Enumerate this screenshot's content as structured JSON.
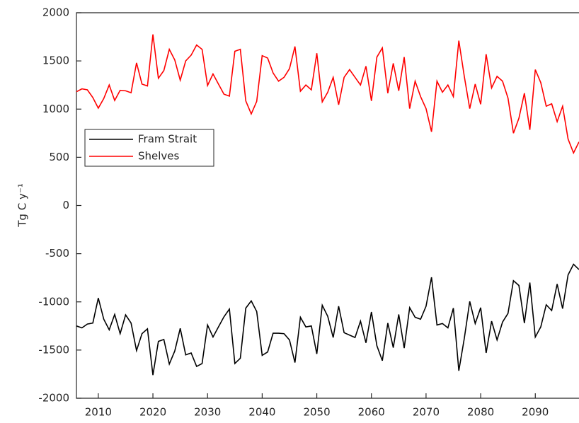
{
  "chart_data": {
    "type": "line",
    "y_label": "Tg C y⁻¹",
    "x": [
      2006,
      2007,
      2008,
      2009,
      2010,
      2011,
      2012,
      2013,
      2014,
      2015,
      2016,
      2017,
      2018,
      2019,
      2020,
      2021,
      2022,
      2023,
      2024,
      2025,
      2026,
      2027,
      2028,
      2029,
      2030,
      2031,
      2032,
      2033,
      2034,
      2035,
      2036,
      2037,
      2038,
      2039,
      2040,
      2041,
      2042,
      2043,
      2044,
      2045,
      2046,
      2047,
      2048,
      2049,
      2050,
      2051,
      2052,
      2053,
      2054,
      2055,
      2056,
      2057,
      2058,
      2059,
      2060,
      2061,
      2062,
      2063,
      2064,
      2065,
      2066,
      2067,
      2068,
      2069,
      2070,
      2071,
      2072,
      2073,
      2074,
      2075,
      2076,
      2077,
      2078,
      2079,
      2080,
      2081,
      2082,
      2083,
      2084,
      2085,
      2086,
      2087,
      2088,
      2089,
      2090,
      2091,
      2092,
      2093,
      2094,
      2095,
      2096,
      2097,
      2098
    ],
    "series": [
      {
        "name": "Fram Strait",
        "color": "#000000",
        "values": [
          -1250,
          -1270,
          -1230,
          -1220,
          -960,
          -1180,
          -1290,
          -1130,
          -1330,
          -1135,
          -1220,
          -1505,
          -1330,
          -1280,
          -1760,
          -1410,
          -1390,
          -1645,
          -1510,
          -1275,
          -1550,
          -1530,
          -1670,
          -1640,
          -1240,
          -1365,
          -1260,
          -1155,
          -1075,
          -1640,
          -1585,
          -1065,
          -990,
          -1100,
          -1555,
          -1520,
          -1325,
          -1325,
          -1330,
          -1395,
          -1630,
          -1160,
          -1260,
          -1250,
          -1540,
          -1035,
          -1150,
          -1370,
          -1045,
          -1320,
          -1345,
          -1370,
          -1200,
          -1425,
          -1105,
          -1455,
          -1610,
          -1220,
          -1475,
          -1130,
          -1480,
          -1060,
          -1160,
          -1180,
          -1045,
          -745,
          -1240,
          -1225,
          -1270,
          -1065,
          -1715,
          -1380,
          -995,
          -1225,
          -1060,
          -1530,
          -1200,
          -1395,
          -1210,
          -1120,
          -780,
          -830,
          -1220,
          -800,
          -1365,
          -1260,
          -1030,
          -1090,
          -815,
          -1070,
          -720,
          -610,
          -665
        ]
      },
      {
        "name": "Shelves",
        "color": "#ff0000",
        "values": [
          1180,
          1210,
          1200,
          1120,
          1010,
          1110,
          1250,
          1090,
          1195,
          1190,
          1170,
          1480,
          1260,
          1240,
          1775,
          1320,
          1400,
          1620,
          1510,
          1300,
          1500,
          1560,
          1665,
          1620,
          1245,
          1365,
          1260,
          1155,
          1135,
          1600,
          1620,
          1085,
          950,
          1080,
          1555,
          1530,
          1375,
          1290,
          1330,
          1420,
          1650,
          1185,
          1250,
          1200,
          1580,
          1075,
          1175,
          1330,
          1045,
          1330,
          1410,
          1330,
          1250,
          1445,
          1085,
          1540,
          1635,
          1165,
          1475,
          1190,
          1540,
          1005,
          1290,
          1130,
          1005,
          765,
          1290,
          1175,
          1250,
          1130,
          1710,
          1340,
          1005,
          1260,
          1050,
          1570,
          1220,
          1340,
          1290,
          1115,
          750,
          905,
          1165,
          785,
          1410,
          1275,
          1030,
          1055,
          870,
          1030,
          690,
          545,
          660
        ]
      }
    ],
    "xlim": [
      2006,
      2098
    ],
    "xticks": [
      2010,
      2020,
      2030,
      2040,
      2050,
      2060,
      2070,
      2080,
      2090
    ],
    "ylim": [
      -2000,
      2000
    ],
    "yticks": [
      -2000,
      -1500,
      -1000,
      -500,
      0,
      500,
      1000,
      1500,
      2000
    ],
    "grid": false,
    "legend": "left"
  }
}
